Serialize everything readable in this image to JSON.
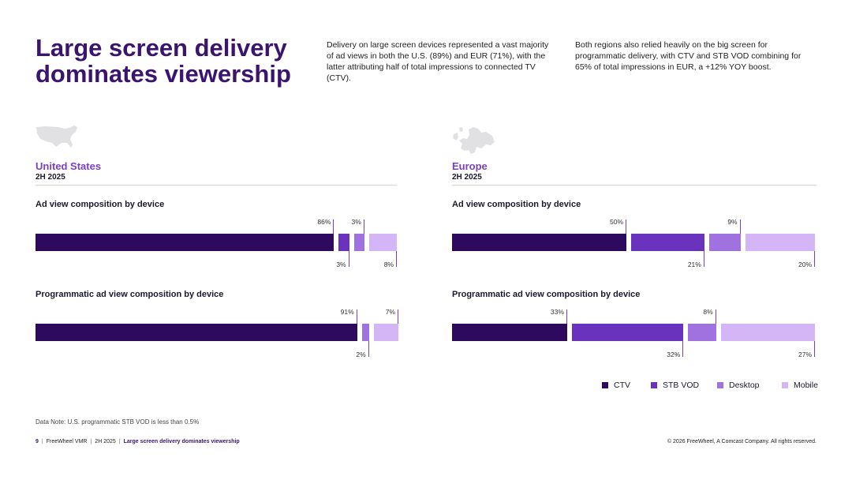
{
  "title": "Large screen delivery dominates viewership",
  "intro": [
    "Delivery on large screen devices represented a vast majority of ad views in both the U.S. (89%) and EUR (71%), with the latter attributing half of total impressions to connected TV (CTV).",
    "Both regions also relied heavily on the big screen for programmatic delivery, with CTV and STB VOD combining for 65% of total impressions in EUR, a +12% YOY boost."
  ],
  "colors": {
    "CTV": "#2e0a5e",
    "STB VOD": "#6a33be",
    "Desktop": "#a072e0",
    "Mobile": "#d4b6f7",
    "title": "#3b1470",
    "region": "#7b3fc4"
  },
  "us": {
    "region": "United States",
    "period": "2H 2025",
    "map_icon": "us-map-icon"
  },
  "eu": {
    "region": "Europe",
    "period": "2H 2025",
    "map_icon": "europe-map-icon"
  },
  "chart_data": [
    {
      "type": "bar",
      "orientation": "horizontal-stacked",
      "title": "Ad view composition by device",
      "region": "United States",
      "categories": [
        "CTV",
        "STB VOD",
        "Desktop",
        "Mobile"
      ],
      "values": [
        86,
        3,
        3,
        8
      ],
      "labels": [
        "86%",
        "3%",
        "3%",
        "8%"
      ]
    },
    {
      "type": "bar",
      "orientation": "horizontal-stacked",
      "title": "Programmatic ad view composition by device",
      "region": "United States",
      "categories": [
        "CTV",
        "STB VOD",
        "Desktop",
        "Mobile"
      ],
      "values": [
        91,
        0,
        2,
        7
      ],
      "labels": [
        "91%",
        "",
        "2%",
        "7%"
      ]
    },
    {
      "type": "bar",
      "orientation": "horizontal-stacked",
      "title": "Ad view composition by device",
      "region": "Europe",
      "categories": [
        "CTV",
        "STB VOD",
        "Desktop",
        "Mobile"
      ],
      "values": [
        50,
        21,
        9,
        20
      ],
      "labels": [
        "50%",
        "21%",
        "9%",
        "20%"
      ]
    },
    {
      "type": "bar",
      "orientation": "horizontal-stacked",
      "title": "Programmatic ad view composition by device",
      "region": "Europe",
      "categories": [
        "CTV",
        "STB VOD",
        "Desktop",
        "Mobile"
      ],
      "values": [
        33,
        32,
        8,
        27
      ],
      "labels": [
        "33%",
        "32%",
        "8%",
        "27%"
      ]
    }
  ],
  "legend": [
    "CTV",
    "STB VOD",
    "Desktop",
    "Mobile"
  ],
  "data_note": "Data Note: U.S. programmatic STB VOD is less than 0.5%",
  "footer": {
    "page": "9",
    "brand": "FreeWheel VMR",
    "period": "2H 2025",
    "section": "Large screen delivery dominates viewership"
  },
  "copyright": "© 2026 FreeWheel, A Comcast Company. All rights reserved."
}
